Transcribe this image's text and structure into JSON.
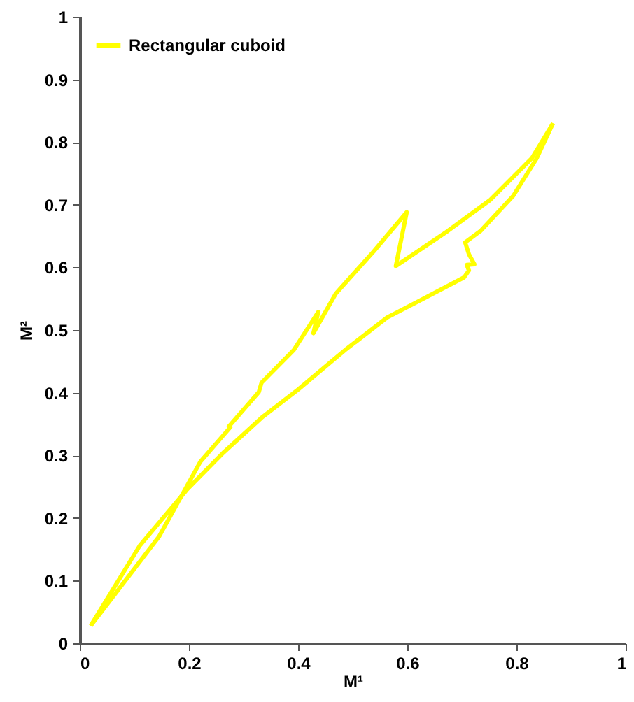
{
  "chart_data": {
    "type": "line",
    "xlabel": "M¹",
    "ylabel": "M²",
    "series": [
      {
        "name": "Rectangular cuboid",
        "color": "#ffff00",
        "x": [
          0.02,
          0.11,
          0.196,
          0.264,
          0.333,
          0.4,
          0.486,
          0.563,
          0.623,
          0.704,
          0.713,
          0.709,
          0.723,
          0.713,
          0.706,
          0.734,
          0.794,
          0.837,
          0.867
        ],
        "values": [
          0.028,
          0.156,
          0.245,
          0.305,
          0.36,
          0.405,
          0.468,
          0.52,
          0.547,
          0.584,
          0.595,
          0.604,
          0.605,
          0.621,
          0.64,
          0.658,
          0.714,
          0.774,
          0.83
        ]
      },
      {
        "color": "#ffff00",
        "x": [
          0.867,
          0.828,
          0.751,
          0.674,
          0.579,
          0.599,
          0.538,
          0.469,
          0.428,
          0.437,
          0.392,
          0.333,
          0.328,
          0.273,
          0.276,
          0.221,
          0.145,
          0.02
        ],
        "values": [
          0.83,
          0.774,
          0.707,
          0.658,
          0.602,
          0.688,
          0.625,
          0.558,
          0.495,
          0.529,
          0.468,
          0.416,
          0.401,
          0.346,
          0.345,
          0.29,
          0.17,
          0.028
        ]
      }
    ],
    "xlim": [
      0,
      1
    ],
    "xticks": [
      0,
      0.2,
      0.4,
      0.6,
      0.8,
      1
    ],
    "ylim": [
      0,
      1
    ],
    "yticks": [
      0,
      0.1,
      0.2,
      0.3,
      0.4,
      0.5,
      0.6,
      0.7,
      0.8,
      0.9,
      1
    ],
    "grid": false,
    "legend": "top left",
    "marker": "none",
    "line_style": "solid"
  }
}
